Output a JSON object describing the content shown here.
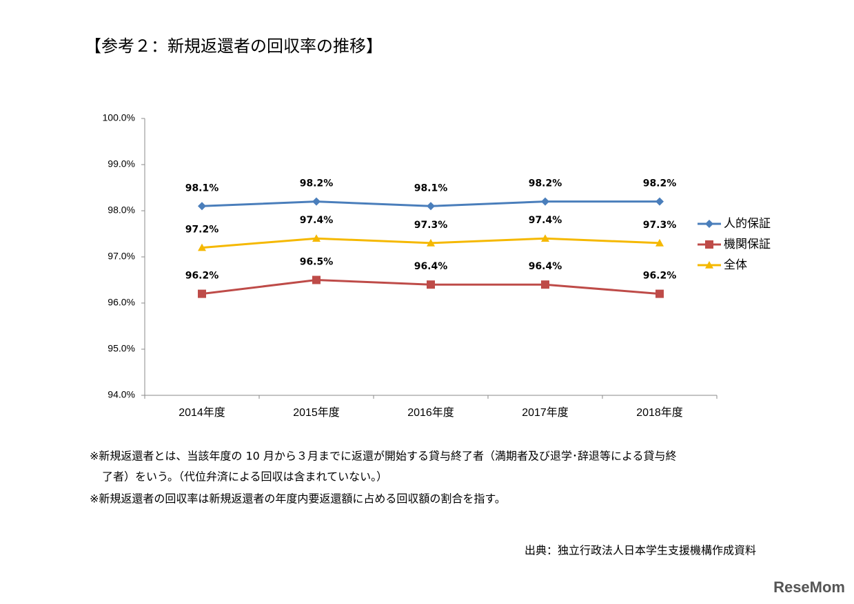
{
  "chart_data": {
    "type": "line",
    "title": "【参考２：新規返還者の回収率の推移】",
    "categories": [
      "2014年度",
      "2015年度",
      "2016年度",
      "2017年度",
      "2018年度"
    ],
    "series": [
      {
        "name": "人的保証",
        "color": "#4a7ebb",
        "marker": "diamond",
        "values": [
          98.1,
          98.2,
          98.1,
          98.2,
          98.2
        ],
        "value_labels": [
          "98.1%",
          "98.2%",
          "98.1%",
          "98.2%",
          "98.2%"
        ]
      },
      {
        "name": "機関保証",
        "color": "#be4b48",
        "marker": "square",
        "values": [
          96.2,
          96.5,
          96.4,
          96.4,
          96.2
        ],
        "value_labels": [
          "96.2%",
          "96.5%",
          "96.4%",
          "96.4%",
          "96.2%"
        ]
      },
      {
        "name": "全体",
        "color": "#f5b800",
        "marker": "triangle",
        "values": [
          97.2,
          97.4,
          97.3,
          97.4,
          97.3
        ],
        "value_labels": [
          "97.2%",
          "97.4%",
          "97.3%",
          "97.4%",
          "97.3%"
        ]
      }
    ],
    "ylim": [
      94,
      100
    ],
    "yticks": [
      {
        "value": 94,
        "label": "94.0%"
      },
      {
        "value": 95,
        "label": "95.0%"
      },
      {
        "value": 96,
        "label": "96.0%"
      },
      {
        "value": 97,
        "label": "97.0%"
      },
      {
        "value": 98,
        "label": "98.0%"
      },
      {
        "value": 99,
        "label": "99.0%"
      },
      {
        "value": 100,
        "label": "100.0%"
      }
    ],
    "grid": false,
    "legend": "right"
  },
  "notes": [
    "※新規返還者とは、当該年度の 10 月から３月までに返還が開始する貸与終了者（満期者及び退学･辞退等による貸与終",
    "了者）をいう。（代位弁済による回収は含まれていない。）",
    "※新規返還者の回収率は新規返還者の年度内要返還額に占める回収額の割合を指す。"
  ],
  "source": "出典：独立行政法人日本学生支援機構作成資料",
  "logo": "ReseMom"
}
